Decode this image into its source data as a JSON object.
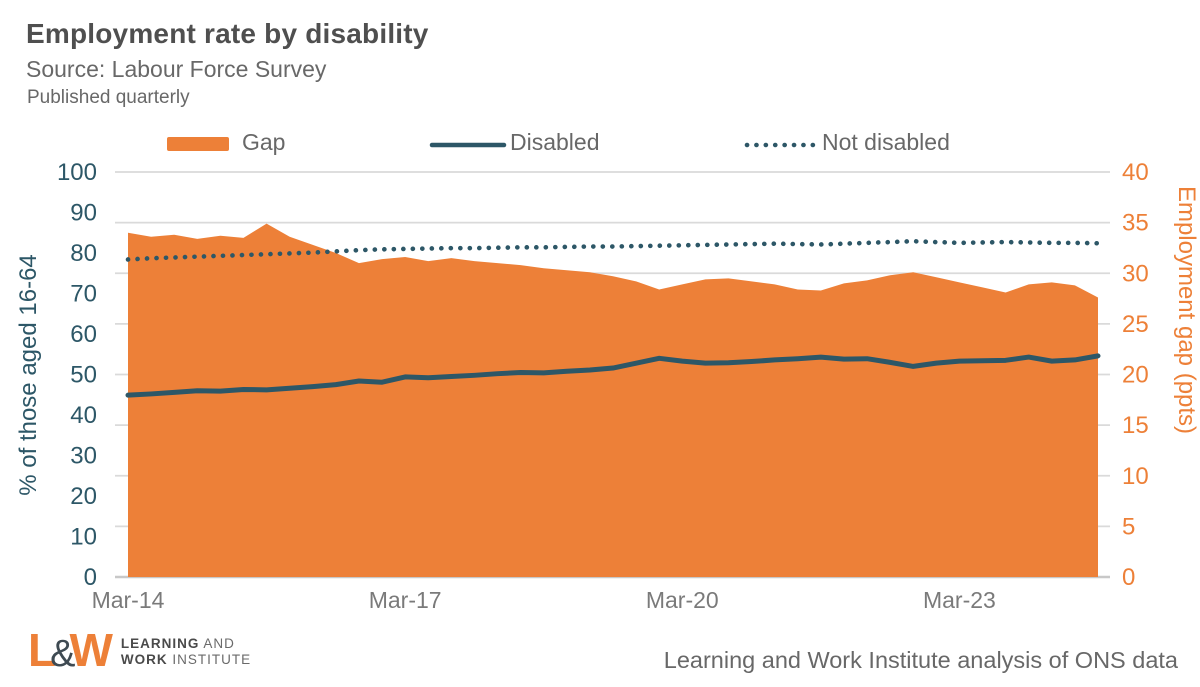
{
  "header": {
    "title": "Employment rate by disability",
    "source": "Source: Labour Force Survey",
    "published": "Published quarterly"
  },
  "legend": {
    "gap": "Gap",
    "disabled": "Disabled",
    "not_disabled": "Not disabled"
  },
  "chart_data": {
    "type": "area",
    "subtype": "combo: area (gap, right axis) + solid line and dotted line (rates, left axis)",
    "x_unit": "quarterly time series, Mar-14 to Sep-24, 43 points",
    "x_tick_labels": [
      "Mar-14",
      "Mar-17",
      "Mar-20",
      "Mar-23"
    ],
    "x_tick_indices": [
      0,
      12,
      24,
      36
    ],
    "left_axis": {
      "label": "% of those aged 16-64",
      "min": 0,
      "max": 100,
      "step": 10
    },
    "right_axis": {
      "label": "Employment gap (ppts)",
      "min": 0,
      "max": 40,
      "step": 5
    },
    "grid": "horizontal gridlines at right-axis ticks (every 5 ppts)",
    "legend_position": "top",
    "series": [
      {
        "name": "Gap",
        "type": "area",
        "axis": "right",
        "values": [
          34.0,
          33.6,
          33.8,
          33.4,
          33.7,
          33.5,
          34.9,
          33.6,
          32.8,
          32.0,
          31.0,
          31.4,
          31.6,
          31.2,
          31.5,
          31.2,
          31.0,
          30.8,
          30.5,
          30.3,
          30.1,
          29.7,
          29.2,
          28.4,
          28.9,
          29.4,
          29.5,
          29.2,
          28.9,
          28.4,
          28.3,
          29.0,
          29.3,
          29.8,
          30.1,
          29.6,
          29.1,
          28.6,
          28.1,
          28.9,
          29.1,
          28.8,
          27.6
        ]
      },
      {
        "name": "Disabled",
        "type": "line",
        "axis": "left",
        "values": [
          44.9,
          45.2,
          45.6,
          46.0,
          45.9,
          46.3,
          46.2,
          46.6,
          47.0,
          47.5,
          48.4,
          48.1,
          49.4,
          49.2,
          49.5,
          49.8,
          50.2,
          50.5,
          50.4,
          50.8,
          51.1,
          51.6,
          52.8,
          54.0,
          53.3,
          52.8,
          52.9,
          53.2,
          53.6,
          53.9,
          54.3,
          53.8,
          53.9,
          53.0,
          52.0,
          52.8,
          53.3,
          53.4,
          53.5,
          54.3,
          53.3,
          53.6,
          54.6
        ]
      },
      {
        "name": "Not disabled",
        "type": "dotted_line",
        "axis": "left",
        "values": [
          78.4,
          78.7,
          78.9,
          79.1,
          79.3,
          79.5,
          79.7,
          79.9,
          80.1,
          80.4,
          80.7,
          80.9,
          81.0,
          81.1,
          81.2,
          81.2,
          81.3,
          81.4,
          81.4,
          81.5,
          81.6,
          81.6,
          81.7,
          81.8,
          81.9,
          82.0,
          82.1,
          82.2,
          82.3,
          82.2,
          82.1,
          82.3,
          82.5,
          82.7,
          82.9,
          82.7,
          82.5,
          82.6,
          82.7,
          82.6,
          82.5,
          82.5,
          82.4
        ]
      }
    ]
  },
  "footer": {
    "logo": {
      "l": "L",
      "amp": "&",
      "w": "W",
      "line1_strong": "LEARNING",
      "line1_rest": "AND",
      "line2_strong": "WORK",
      "line2_rest": "INSTITUTE"
    },
    "credit": "Learning and Work Institute analysis of ONS data"
  },
  "colors": {
    "orange": "#ED8038",
    "teal": "#2D5767",
    "grid": "#DADADA",
    "axis_line": "#C8C8C8",
    "x_label": "#7A7A7A",
    "text": "#686868",
    "title": "#4F4F4F",
    "logo_amp": "#3E4A52"
  }
}
